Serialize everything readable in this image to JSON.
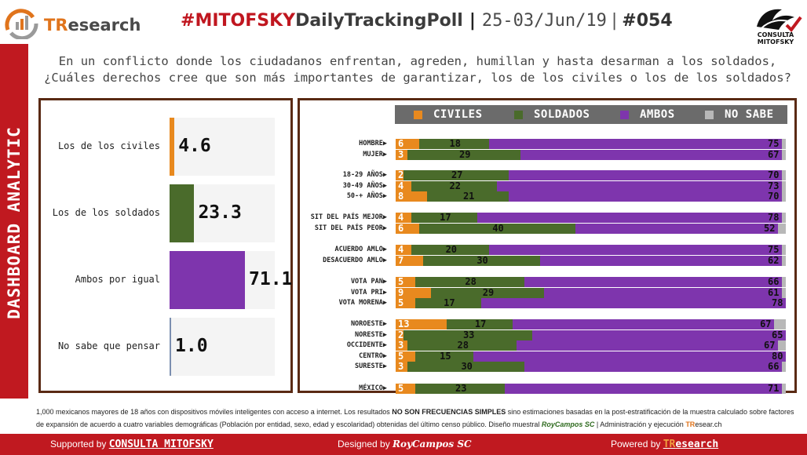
{
  "header": {
    "brand": "TResearch",
    "hashtag_prefix": "#",
    "hashtag_red": "MITOFSKY",
    "hashtag_dark": "DailyTrackingPoll",
    "date_range": "25-03/Jun/19",
    "issue": "#054",
    "cm_logo_caption": "CONSULTA MITOFSKY"
  },
  "side_label": "DASHBOARD ANALYTIC",
  "question": {
    "line1": "En un conflicto donde los ciudadanos enfrentan, agreden, humillan y hasta desarman a los soldados,",
    "line2": "¿Cuáles derechos cree que son más importantes de garantizar, los de los civiles o los de los soldados?"
  },
  "colors": {
    "civiles": "#e8891e",
    "soldados": "#4a6b2b",
    "ambos": "#7e35ad",
    "no_sabe": "#b8b8b8",
    "accent_red": "#c01920",
    "panel_border": "#5a2a14"
  },
  "chart_data": [
    {
      "type": "bar",
      "orientation": "vertical",
      "categories": [
        "Los de los civiles",
        "Los de los soldados",
        "Ambos por igual",
        "No sabe que pensar"
      ],
      "values": [
        4.6,
        23.3,
        71.1,
        1.0
      ],
      "value_labels": [
        "4.6",
        "23.3",
        "71.1",
        "1.0"
      ],
      "colors": [
        "#e8891e",
        "#4a6b2b",
        "#7e35ad",
        "#7b8fb0"
      ]
    },
    {
      "type": "bar",
      "stacked": true,
      "orientation": "horizontal",
      "series_names": [
        "CIVILES",
        "SOLDADOS",
        "AMBOS",
        "NO SABE"
      ],
      "legend": "top",
      "groups": [
        {
          "rows": [
            {
              "label": "HOMBRE",
              "values": [
                6,
                18,
                75,
                1
              ]
            },
            {
              "label": "MUJER",
              "values": [
                3,
                29,
                67,
                1
              ]
            }
          ]
        },
        {
          "rows": [
            {
              "label": "18-29 AÑOS",
              "values": [
                2,
                27,
                70,
                1
              ]
            },
            {
              "label": "30-49 AÑOS",
              "values": [
                4,
                22,
                73,
                1
              ]
            },
            {
              "label": "50-+ AÑOS",
              "values": [
                8,
                21,
                70,
                1
              ]
            }
          ]
        },
        {
          "rows": [
            {
              "label": "SIT DEL PAÍS MEJOR",
              "values": [
                4,
                17,
                78,
                1
              ]
            },
            {
              "label": "SIT DEL PAÍS PEOR",
              "values": [
                6,
                40,
                52,
                2
              ]
            }
          ]
        },
        {
          "rows": [
            {
              "label": "ACUERDO AMLO",
              "values": [
                4,
                20,
                75,
                1
              ]
            },
            {
              "label": "DESACUERDO AMLO",
              "values": [
                7,
                30,
                62,
                1
              ]
            }
          ]
        },
        {
          "rows": [
            {
              "label": "VOTA PAN",
              "values": [
                5,
                28,
                66,
                1
              ]
            },
            {
              "label": "VOTA PRI",
              "values": [
                9,
                29,
                61,
                1
              ]
            },
            {
              "label": "VOTA MORENA",
              "values": [
                5,
                17,
                78,
                0
              ]
            }
          ]
        },
        {
          "rows": [
            {
              "label": "NOROESTE",
              "values": [
                13,
                17,
                67,
                3
              ]
            },
            {
              "label": "NORESTE",
              "values": [
                2,
                33,
                65,
                0
              ]
            },
            {
              "label": "OCCIDENTE",
              "values": [
                3,
                28,
                67,
                2
              ]
            },
            {
              "label": "CENTRO",
              "values": [
                5,
                15,
                80,
                0
              ]
            },
            {
              "label": "SURESTE",
              "values": [
                3,
                30,
                66,
                1
              ]
            }
          ]
        },
        {
          "rows": [
            {
              "label": "MÉXICO",
              "values": [
                5,
                23,
                71,
                1
              ]
            }
          ]
        }
      ]
    }
  ],
  "footer": {
    "part1": "1,000 mexicanos mayores de 18 años con dispositivos móviles inteligentes con acceso a internet. Los resultados ",
    "bold": "NO SON FRECUENCIAS SIMPLES",
    "part2": " sino estimaciones basadas en la post-estratificación de la muestra calculado sobre factores de expansión de acuerdo a cuatro variables demográficas (Población por entidad, sexo, edad y escolaridad) obtenidas del último censo público. Diseño muestral ",
    "designer": "RoyCampos SC",
    "part3": " | Administración y ejecución ",
    "tr_t": "TR",
    "tr_rest": "esear.ch"
  },
  "bottom_bar": {
    "supported_by": "Supported by ",
    "supported_name": "CONSULTA MITOFSKY",
    "designed_by": "Designed by ",
    "designer_name": "RoyCampos SC",
    "powered_by": "Powered by ",
    "powered_t": "TR",
    "powered_rest": "esearch"
  }
}
